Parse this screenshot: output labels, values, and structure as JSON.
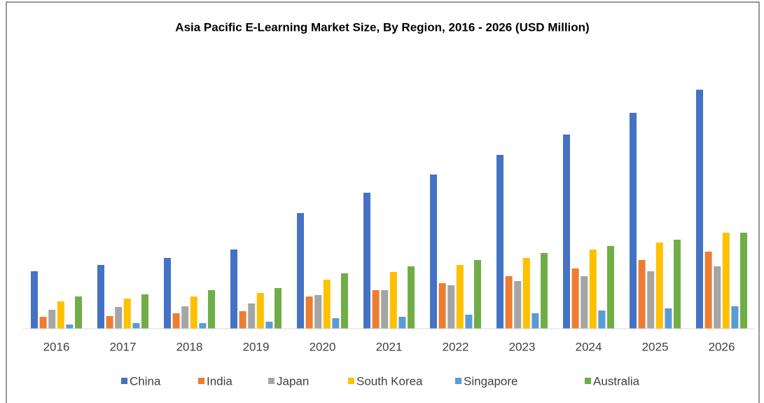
{
  "chart_data": {
    "type": "bar",
    "title": "Asia Pacific E-Learning Market Size, By Region, 2016 - 2026 (USD Million)",
    "categories": [
      "2016",
      "2017",
      "2018",
      "2019",
      "2020",
      "2021",
      "2022",
      "2023",
      "2024",
      "2025",
      "2026"
    ],
    "series": [
      {
        "name": "China",
        "color": "#4472c4",
        "values": [
          82,
          91,
          101,
          113,
          165,
          194,
          220,
          248,
          277,
          308,
          341
        ]
      },
      {
        "name": "India",
        "color": "#ed7d31",
        "values": [
          17,
          18,
          22,
          25,
          46,
          55,
          65,
          75,
          86,
          98,
          110
        ]
      },
      {
        "name": "Japan",
        "color": "#a5a5a5",
        "values": [
          27,
          31,
          32,
          36,
          48,
          55,
          62,
          68,
          75,
          82,
          89
        ]
      },
      {
        "name": "South Korea",
        "color": "#ffc000",
        "values": [
          39,
          43,
          46,
          51,
          70,
          81,
          91,
          101,
          113,
          123,
          137
        ]
      },
      {
        "name": "Singapore",
        "color": "#5b9bd5",
        "values": [
          6,
          8,
          8,
          10,
          15,
          17,
          20,
          22,
          26,
          29,
          32
        ]
      },
      {
        "name": "Australia",
        "color": "#70ad47",
        "values": [
          46,
          49,
          55,
          58,
          79,
          89,
          98,
          108,
          118,
          127,
          137
        ]
      }
    ],
    "ylim": [
      0,
      350
    ],
    "legend": "bottom"
  }
}
